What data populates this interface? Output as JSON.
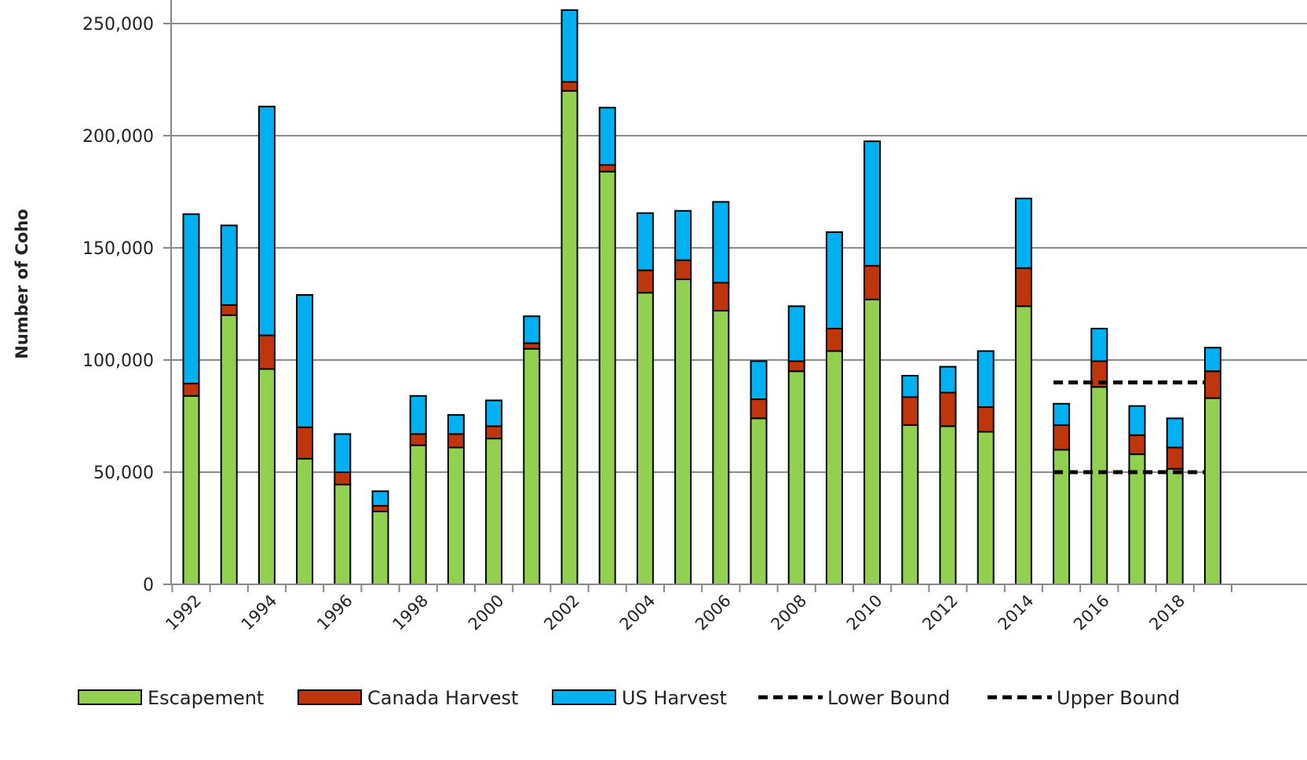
{
  "chart_data": {
    "type": "bar",
    "stacked": true,
    "xlabel": "",
    "ylabel": "Number of Coho",
    "ylim": [
      0,
      250000
    ],
    "yticks": [
      "0",
      "50,000",
      "100,000",
      "150,000",
      "200,000",
      "250,000"
    ],
    "ytick_values": [
      0,
      50000,
      100000,
      150000,
      200000,
      250000
    ],
    "grid": true,
    "legend_position": "bottom",
    "categories": [
      "1992",
      "1993",
      "1994",
      "1995",
      "1996",
      "1997",
      "1998",
      "1999",
      "2000",
      "2001",
      "2002",
      "2003",
      "2004",
      "2005",
      "2006",
      "2007",
      "2008",
      "2009",
      "2010",
      "2011",
      "2012",
      "2013",
      "2014",
      "2015",
      "2016",
      "2017",
      "2018",
      "2019"
    ],
    "xtick_labels": [
      "1992",
      "1994",
      "1996",
      "1998",
      "2000",
      "2002",
      "2004",
      "2006",
      "2008",
      "2010",
      "2012",
      "2014",
      "2016",
      "2018"
    ],
    "series": [
      {
        "name": "Escapement",
        "color": "#92d050",
        "values": [
          84000,
          120000,
          96000,
          56000,
          44500,
          32500,
          62000,
          61000,
          65000,
          105000,
          220000,
          184000,
          130000,
          136000,
          122000,
          74000,
          95000,
          104000,
          127000,
          71000,
          70500,
          68000,
          124000,
          60000,
          88000,
          58000,
          51500,
          83000
        ]
      },
      {
        "name": "Canada Harvest",
        "color": "#c0360c",
        "values": [
          5500,
          4500,
          15000,
          14000,
          5500,
          2500,
          5000,
          6000,
          5500,
          2500,
          4000,
          3000,
          10000,
          8500,
          12500,
          8500,
          4500,
          10000,
          15000,
          12500,
          15000,
          11000,
          17000,
          11000,
          11500,
          8500,
          9500,
          12000
        ]
      },
      {
        "name": "US Harvest",
        "color": "#00b0f0",
        "values": [
          75500,
          35500,
          102000,
          59000,
          17000,
          6500,
          17000,
          8500,
          11500,
          12000,
          32000,
          25500,
          25500,
          22000,
          36000,
          17000,
          24500,
          43000,
          55500,
          9500,
          11500,
          25000,
          31000,
          9500,
          14500,
          13000,
          13000,
          10500
        ]
      }
    ],
    "reference_lines": [
      {
        "name": "Lower Bound",
        "value": 50000,
        "x_range": [
          "2015",
          "2019"
        ],
        "color": "#000000",
        "dash": true
      },
      {
        "name": "Upper Bound",
        "value": 90000,
        "x_range": [
          "2015",
          "2019"
        ],
        "color": "#000000",
        "dash": true
      }
    ]
  }
}
